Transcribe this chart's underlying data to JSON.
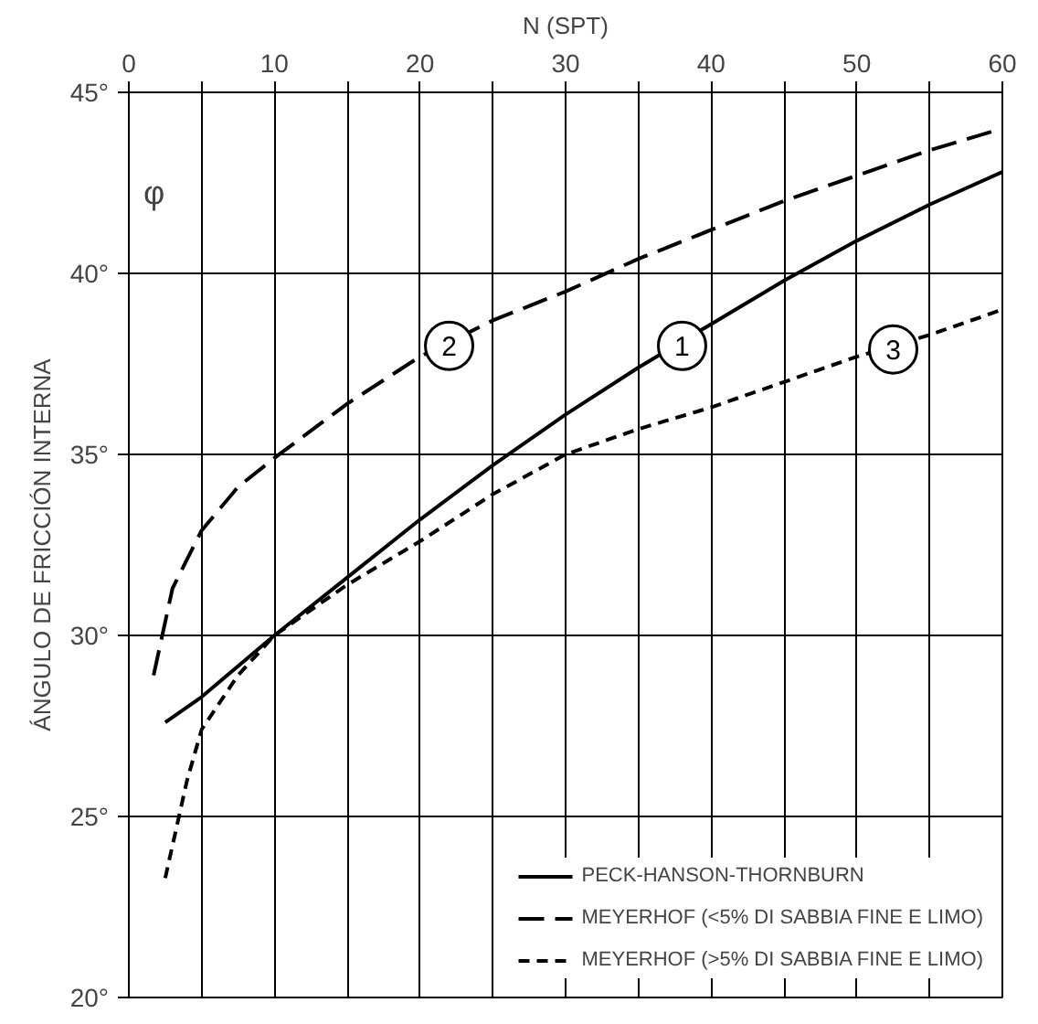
{
  "chart_data": {
    "type": "line",
    "xlabel": "N (SPT)",
    "ylabel": "ÁNGULO DE FRICCIÓN INTERNA",
    "xlim": [
      0,
      60
    ],
    "ylim": [
      20,
      45
    ],
    "xticks": [
      0,
      {
        "value": 5,
        "label": null
      },
      10,
      {
        "value": 15,
        "label": null
      },
      20,
      {
        "value": 25,
        "label": null
      },
      30,
      {
        "value": 35,
        "label": null
      },
      40,
      {
        "value": 45,
        "label": null
      },
      50,
      {
        "value": 55,
        "label": null
      },
      60
    ],
    "yticks": [
      {
        "value": 20,
        "label": "20°"
      },
      {
        "value": 25,
        "label": "25°"
      },
      {
        "value": 30,
        "label": "30°"
      },
      {
        "value": 35,
        "label": "35°"
      },
      {
        "value": 40,
        "label": "40°"
      },
      {
        "value": 45,
        "label": "45°"
      }
    ],
    "grid": true,
    "legend": "bottom right",
    "marker": "none",
    "series": [
      {
        "name": "PECK-HANSON-THORNBURN",
        "color": "#000000",
        "line_style": "solid",
        "x": [
          2.5,
          5,
          10,
          15,
          20,
          25,
          30,
          35,
          40,
          45,
          50,
          55,
          60
        ],
        "values": [
          27.6,
          28.3,
          30,
          31.6,
          33.2,
          34.7,
          36.1,
          37.4,
          38.6,
          39.8,
          40.9,
          41.9,
          42.8
        ]
      },
      {
        "name": "MEYERHOF (<5% DI SABBIA FINE E LIMO)",
        "color": "#000000",
        "line_style": "dashed",
        "x": [
          1.7,
          3,
          5,
          7.5,
          10,
          15,
          20,
          25,
          30,
          35,
          40,
          45,
          50,
          55,
          60
        ],
        "values": [
          28.9,
          31.3,
          32.9,
          34.1,
          34.9,
          36.4,
          37.7,
          38.7,
          39.5,
          40.4,
          41.2,
          42,
          42.7,
          43.4,
          44
        ]
      },
      {
        "name": "MEYERHOF (>5% DI SABBIA FINE E LIMO)",
        "color": "#000000",
        "line_style": "dotted",
        "x": [
          2.5,
          4,
          5,
          7.5,
          10,
          15,
          20,
          25,
          30,
          35,
          40,
          45,
          50,
          55,
          60
        ],
        "values": [
          23.3,
          26,
          27.4,
          28.9,
          30,
          31.4,
          32.6,
          33.9,
          35,
          35.7,
          36.3,
          37,
          37.7,
          38.3,
          39
        ]
      }
    ],
    "annotations": [
      {
        "text": "1",
        "x": 38,
        "y": 38
      },
      {
        "text": "2",
        "x": 22,
        "y": 38
      },
      {
        "text": "3",
        "x": 52.5,
        "y": 37.9
      },
      "φ"
    ]
  }
}
